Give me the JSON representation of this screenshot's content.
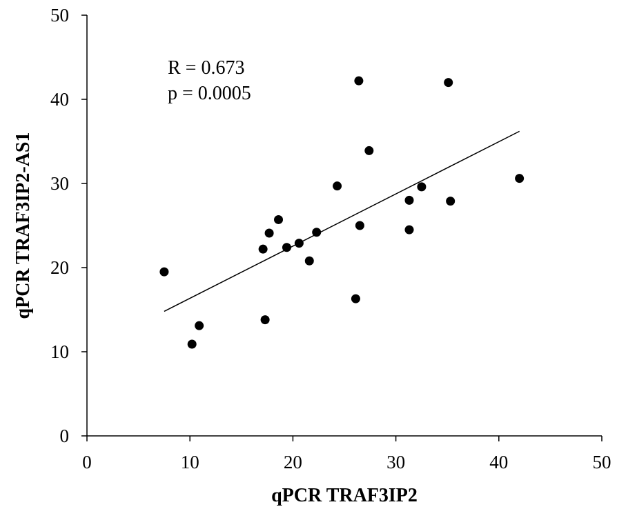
{
  "chart_data": {
    "type": "scatter",
    "title": "",
    "xlabel": "qPCR TRAF3IP2",
    "ylabel": "qPCR TRAF3IP2-AS1",
    "xlim": [
      0,
      50
    ],
    "ylim": [
      0,
      50
    ],
    "xticks": [
      0,
      10,
      20,
      30,
      40,
      50
    ],
    "yticks": [
      0,
      10,
      20,
      30,
      40,
      50
    ],
    "grid": false,
    "legend": "none",
    "marker_color": "#000000",
    "annotations": [
      "R = 0.673",
      "p = 0.0005"
    ],
    "trendline": {
      "type": "linear",
      "x": [
        7.5,
        42.0
      ],
      "y": [
        14.8,
        36.2
      ]
    },
    "points": [
      {
        "x": 7.5,
        "y": 19.5
      },
      {
        "x": 10.2,
        "y": 10.9
      },
      {
        "x": 10.9,
        "y": 13.1
      },
      {
        "x": 17.1,
        "y": 22.2
      },
      {
        "x": 17.3,
        "y": 13.8
      },
      {
        "x": 17.7,
        "y": 24.1
      },
      {
        "x": 18.6,
        "y": 25.7
      },
      {
        "x": 19.4,
        "y": 22.4
      },
      {
        "x": 20.6,
        "y": 22.9
      },
      {
        "x": 21.6,
        "y": 20.8
      },
      {
        "x": 22.3,
        "y": 24.2
      },
      {
        "x": 24.3,
        "y": 29.7
      },
      {
        "x": 26.1,
        "y": 16.3
      },
      {
        "x": 26.4,
        "y": 42.2
      },
      {
        "x": 26.5,
        "y": 25.0
      },
      {
        "x": 27.4,
        "y": 33.9
      },
      {
        "x": 31.3,
        "y": 24.5
      },
      {
        "x": 31.3,
        "y": 28.0
      },
      {
        "x": 32.5,
        "y": 29.6
      },
      {
        "x": 35.1,
        "y": 42.0
      },
      {
        "x": 35.3,
        "y": 27.9
      },
      {
        "x": 42.0,
        "y": 30.6
      }
    ]
  }
}
